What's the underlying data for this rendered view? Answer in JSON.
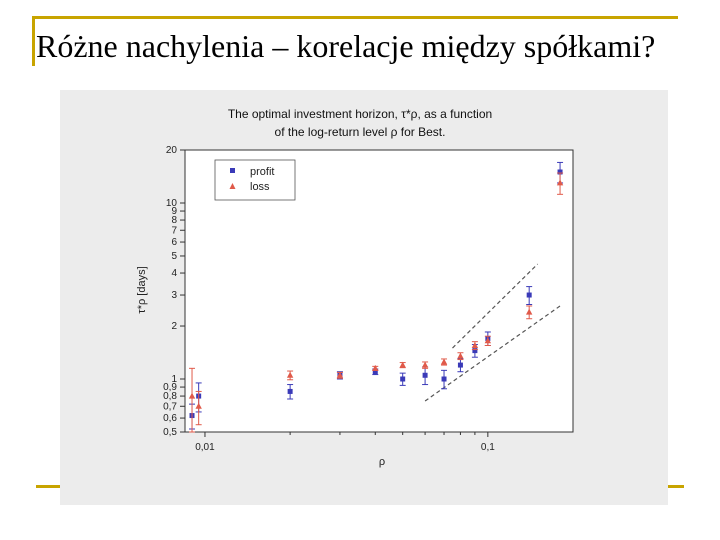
{
  "slide": {
    "title": "Różne nachylenia – korelacje między spółkami?"
  },
  "colors": {
    "accent_line": "#c8a400",
    "profit": "#3a3ab8",
    "loss": "#e05a4a",
    "panel_bg": "#ececec"
  },
  "chart_data": {
    "type": "scatter",
    "caption_line1": "The optimal investment horizon, τ*ρ, as a function",
    "caption_line2": "of the log-return level ρ for Best.",
    "xlabel": "ρ",
    "ylabel": "τ*ρ [days]",
    "xscale": "log",
    "yscale": "log",
    "xlim": [
      0.0085,
      0.2
    ],
    "ylim": [
      0.5,
      20
    ],
    "x_ticks": [
      {
        "value": 0.01,
        "label": "0,01"
      },
      {
        "value": 0.1,
        "label": "0,1"
      }
    ],
    "y_ticks": [
      {
        "value": 0.5,
        "label": "0,5"
      },
      {
        "value": 0.6,
        "label": "0,6"
      },
      {
        "value": 0.7,
        "label": "0,7"
      },
      {
        "value": 0.8,
        "label": "0,8"
      },
      {
        "value": 0.9,
        "label": "0,9"
      },
      {
        "value": 1,
        "label": "1"
      },
      {
        "value": 2,
        "label": "2"
      },
      {
        "value": 3,
        "label": "3"
      },
      {
        "value": 4,
        "label": "4"
      },
      {
        "value": 5,
        "label": "5"
      },
      {
        "value": 6,
        "label": "6"
      },
      {
        "value": 7,
        "label": "7"
      },
      {
        "value": 8,
        "label": "8"
      },
      {
        "value": 9,
        "label": "9"
      },
      {
        "value": 10,
        "label": "10"
      },
      {
        "value": 20,
        "label": "20"
      }
    ],
    "legend_position": "top-left",
    "series": [
      {
        "name": "profit",
        "marker": "square",
        "color": "#3a3ab8",
        "points": [
          {
            "x": 0.009,
            "y": 0.62,
            "err": 0.1
          },
          {
            "x": 0.0095,
            "y": 0.8,
            "err": 0.15
          },
          {
            "x": 0.02,
            "y": 0.85,
            "err": 0.08
          },
          {
            "x": 0.03,
            "y": 1.05,
            "err": 0.05
          },
          {
            "x": 0.04,
            "y": 1.1,
            "err": 0.04
          },
          {
            "x": 0.05,
            "y": 1.0,
            "err": 0.08
          },
          {
            "x": 0.06,
            "y": 1.05,
            "err": 0.12
          },
          {
            "x": 0.07,
            "y": 1.0,
            "err": 0.12
          },
          {
            "x": 0.08,
            "y": 1.2,
            "err": 0.1
          },
          {
            "x": 0.09,
            "y": 1.45,
            "err": 0.12
          },
          {
            "x": 0.1,
            "y": 1.7,
            "err": 0.15
          },
          {
            "x": 0.14,
            "y": 3.0,
            "err": 0.35
          },
          {
            "x": 0.18,
            "y": 15.0,
            "err": 2.0
          }
        ]
      },
      {
        "name": "loss",
        "marker": "triangle",
        "color": "#e05a4a",
        "points": [
          {
            "x": 0.009,
            "y": 0.8,
            "err": 0.35
          },
          {
            "x": 0.0095,
            "y": 0.7,
            "err": 0.15
          },
          {
            "x": 0.02,
            "y": 1.05,
            "err": 0.06
          },
          {
            "x": 0.03,
            "y": 1.05,
            "err": 0.04
          },
          {
            "x": 0.04,
            "y": 1.15,
            "err": 0.03
          },
          {
            "x": 0.05,
            "y": 1.2,
            "err": 0.04
          },
          {
            "x": 0.06,
            "y": 1.2,
            "err": 0.05
          },
          {
            "x": 0.07,
            "y": 1.25,
            "err": 0.05
          },
          {
            "x": 0.08,
            "y": 1.35,
            "err": 0.06
          },
          {
            "x": 0.09,
            "y": 1.55,
            "err": 0.08
          },
          {
            "x": 0.1,
            "y": 1.65,
            "err": 0.1
          },
          {
            "x": 0.14,
            "y": 2.4,
            "err": 0.2
          },
          {
            "x": 0.18,
            "y": 13.0,
            "err": 1.8
          }
        ]
      }
    ],
    "guide_lines": [
      {
        "style": "dashed",
        "x": [
          0.075,
          0.15
        ],
        "y": [
          1.5,
          4.5
        ]
      },
      {
        "style": "dashed",
        "x": [
          0.06,
          0.18
        ],
        "y": [
          0.75,
          2.6
        ]
      }
    ]
  }
}
